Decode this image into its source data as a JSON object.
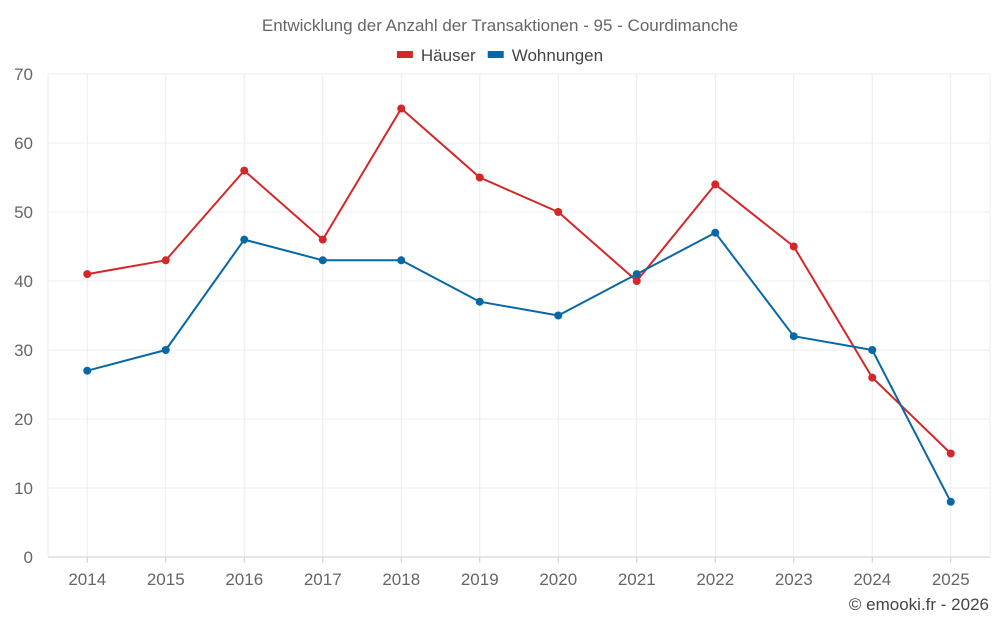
{
  "chart_data": {
    "type": "line",
    "title": "Entwicklung der Anzahl der Transaktionen - 95 - Courdimanche",
    "categories": [
      "2014",
      "2015",
      "2016",
      "2017",
      "2018",
      "2019",
      "2020",
      "2021",
      "2022",
      "2023",
      "2024",
      "2025"
    ],
    "series": [
      {
        "name": "Häuser",
        "color": "#d62728",
        "values": [
          41,
          43,
          56,
          46,
          65,
          55,
          50,
          40,
          54,
          45,
          26,
          15
        ]
      },
      {
        "name": "Wohnungen",
        "color": "#0868a6",
        "values": [
          27,
          30,
          46,
          43,
          43,
          37,
          35,
          41,
          47,
          32,
          30,
          8
        ]
      }
    ],
    "ylim": [
      0,
      70
    ],
    "yticks": [
      0,
      10,
      20,
      30,
      40,
      50,
      60,
      70
    ],
    "xlabel": "",
    "ylabel": "",
    "grid": true,
    "legend_position": "top-center"
  },
  "credit": "© emooki.fr - 2026"
}
